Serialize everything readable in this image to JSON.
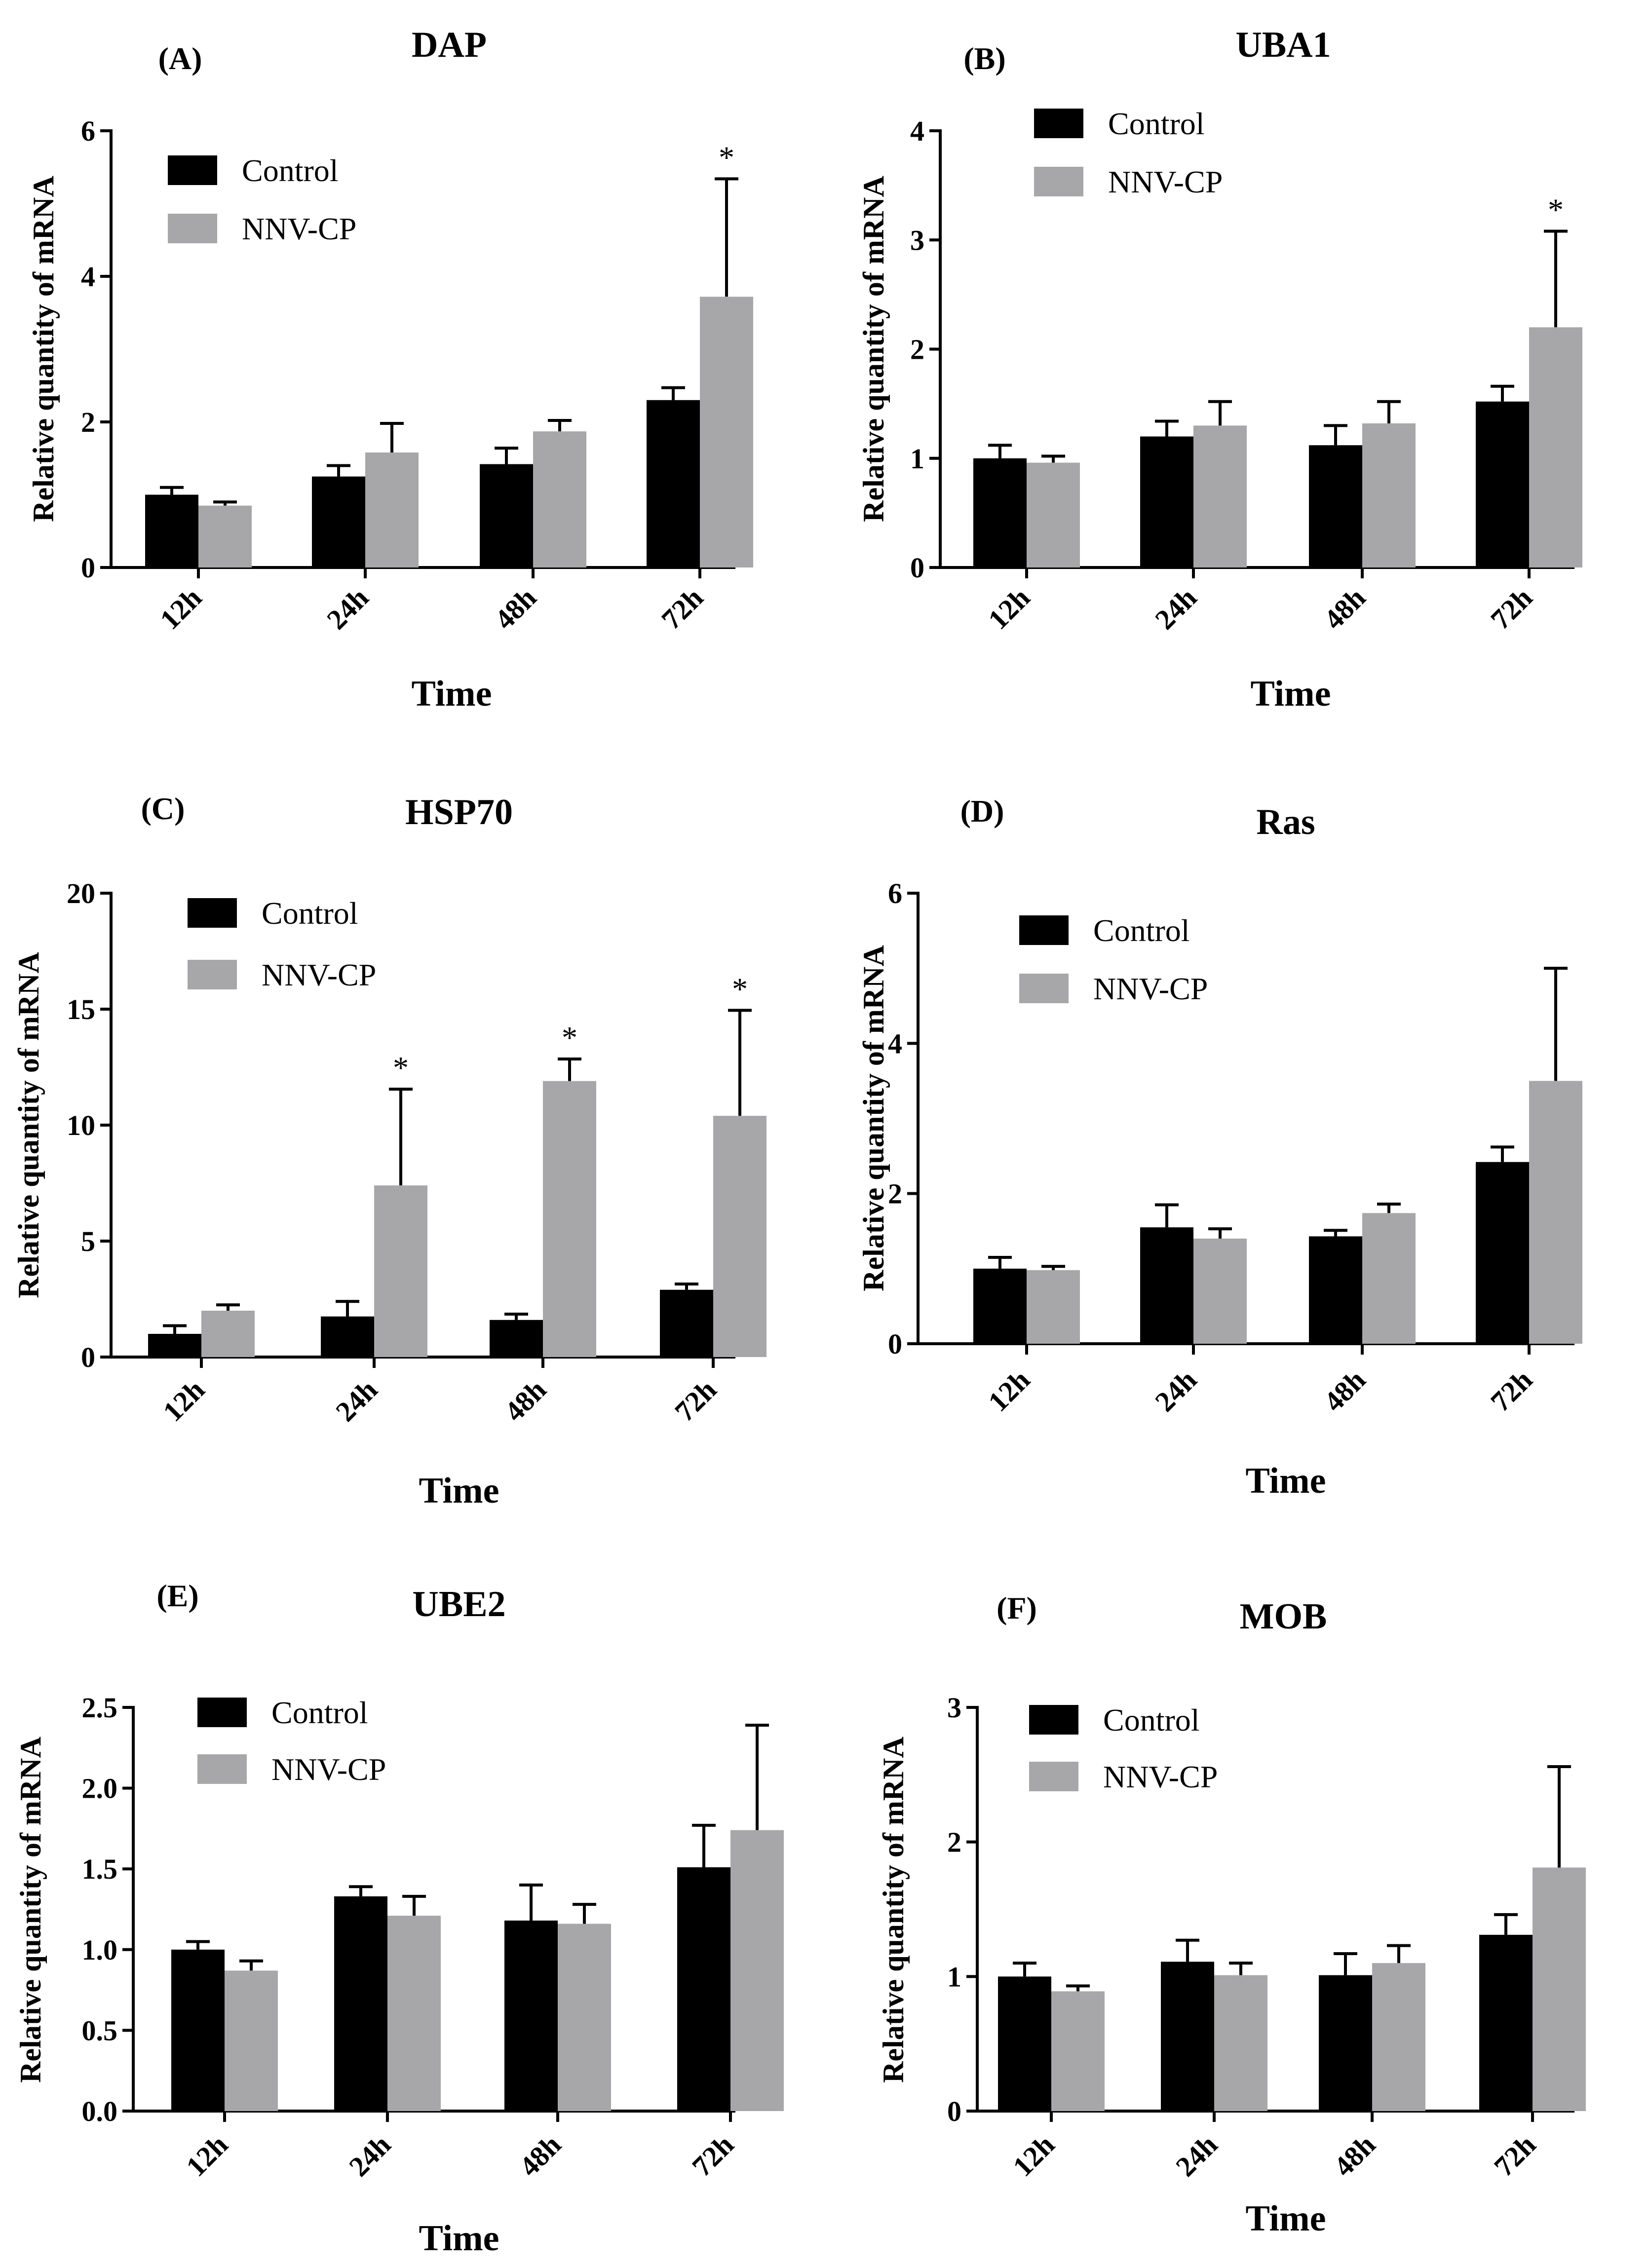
{
  "colors": {
    "control": "#000000",
    "nnv_cp": "#a7a7a9",
    "axis": "#000000"
  },
  "legend": {
    "control": "Control",
    "nnv_cp": "NNV-CP"
  },
  "chart_data": [
    {
      "type": "bar",
      "panel": "(A)",
      "title": "DAP",
      "xlabel": "Time",
      "ylabel": "Relative quantity of mRNA",
      "categories": [
        "12h",
        "24h",
        "48h",
        "72h"
      ],
      "ylim": [
        0,
        6
      ],
      "yticks": [
        "0",
        "2",
        "4",
        "6"
      ],
      "ytick_values": [
        0,
        2,
        4,
        6
      ],
      "series": [
        {
          "name": "Control",
          "values": [
            1.0,
            1.25,
            1.42,
            2.3
          ],
          "errors": [
            0.1,
            0.15,
            0.22,
            0.17
          ]
        },
        {
          "name": "NNV-CP",
          "values": [
            0.85,
            1.58,
            1.87,
            3.72
          ],
          "errors": [
            0.05,
            0.4,
            0.15,
            1.62
          ]
        }
      ],
      "significance": [
        null,
        null,
        null,
        "*"
      ]
    },
    {
      "type": "bar",
      "panel": "(B)",
      "title": "UBA1",
      "xlabel": "Time",
      "ylabel": "Relative quantity of mRNA",
      "categories": [
        "12h",
        "24h",
        "48h",
        "72h"
      ],
      "ylim": [
        0,
        4
      ],
      "yticks": [
        "0",
        "1",
        "2",
        "3",
        "4"
      ],
      "ytick_values": [
        0,
        1,
        2,
        3,
        4
      ],
      "series": [
        {
          "name": "Control",
          "values": [
            1.0,
            1.2,
            1.12,
            1.52
          ],
          "errors": [
            0.12,
            0.14,
            0.18,
            0.14
          ]
        },
        {
          "name": "NNV-CP",
          "values": [
            0.96,
            1.3,
            1.32,
            2.2
          ],
          "errors": [
            0.06,
            0.22,
            0.2,
            0.88
          ]
        }
      ],
      "significance": [
        null,
        null,
        null,
        "*"
      ]
    },
    {
      "type": "bar",
      "panel": "(C)",
      "title": "HSP70",
      "xlabel": "Time",
      "ylabel": "Relative quantity of mRNA",
      "categories": [
        "12h",
        "24h",
        "48h",
        "72h"
      ],
      "ylim": [
        0,
        20
      ],
      "yticks": [
        "0",
        "5",
        "10",
        "15",
        "20"
      ],
      "ytick_values": [
        0,
        5,
        10,
        15,
        20
      ],
      "series": [
        {
          "name": "Control",
          "values": [
            1.0,
            1.75,
            1.6,
            2.9
          ],
          "errors": [
            0.35,
            0.65,
            0.25,
            0.25
          ]
        },
        {
          "name": "NNV-CP",
          "values": [
            2.0,
            7.4,
            11.9,
            10.4
          ],
          "errors": [
            0.25,
            4.15,
            0.95,
            4.55
          ]
        }
      ],
      "significance": [
        null,
        "*",
        "*",
        "*"
      ]
    },
    {
      "type": "bar",
      "panel": "(D)",
      "title": "Ras",
      "xlabel": "Time",
      "ylabel": "Relative quantity of mRNA",
      "categories": [
        "12h",
        "24h",
        "48h",
        "72h"
      ],
      "ylim": [
        0,
        6
      ],
      "yticks": [
        "0",
        "2",
        "4",
        "6"
      ],
      "ytick_values": [
        0,
        2,
        4,
        6
      ],
      "series": [
        {
          "name": "Control",
          "values": [
            1.0,
            1.55,
            1.43,
            2.42
          ],
          "errors": [
            0.15,
            0.3,
            0.08,
            0.2
          ]
        },
        {
          "name": "NNV-CP",
          "values": [
            0.98,
            1.4,
            1.74,
            3.5
          ],
          "errors": [
            0.05,
            0.13,
            0.12,
            1.5
          ]
        }
      ],
      "significance": [
        null,
        null,
        null,
        null
      ]
    },
    {
      "type": "bar",
      "panel": "(E)",
      "title": "UBE2",
      "xlabel": "Time",
      "ylabel": "Relative quantity of mRNA",
      "categories": [
        "12h",
        "24h",
        "48h",
        "72h"
      ],
      "ylim": [
        0,
        2.5
      ],
      "yticks": [
        "0.0",
        "0.5",
        "1.0",
        "1.5",
        "2.0",
        "2.5"
      ],
      "ytick_values": [
        0,
        0.5,
        1.0,
        1.5,
        2.0,
        2.5
      ],
      "series": [
        {
          "name": "Control",
          "values": [
            1.0,
            1.33,
            1.18,
            1.51
          ],
          "errors": [
            0.05,
            0.06,
            0.22,
            0.26
          ]
        },
        {
          "name": "NNV-CP",
          "values": [
            0.87,
            1.21,
            1.16,
            1.74
          ],
          "errors": [
            0.06,
            0.12,
            0.12,
            0.65
          ]
        }
      ],
      "significance": [
        null,
        null,
        null,
        null
      ]
    },
    {
      "type": "bar",
      "panel": "(F)",
      "title": "MOB",
      "xlabel": "Time",
      "ylabel": "Relative quantity of mRNA",
      "categories": [
        "12h",
        "24h",
        "48h",
        "72h"
      ],
      "ylim": [
        0,
        3
      ],
      "yticks": [
        "0",
        "1",
        "2",
        "3"
      ],
      "ytick_values": [
        0,
        1,
        2,
        3
      ],
      "series": [
        {
          "name": "Control",
          "values": [
            1.0,
            1.11,
            1.01,
            1.31
          ],
          "errors": [
            0.1,
            0.16,
            0.16,
            0.15
          ]
        },
        {
          "name": "NNV-CP",
          "values": [
            0.89,
            1.01,
            1.1,
            1.81
          ],
          "errors": [
            0.04,
            0.09,
            0.13,
            0.75
          ]
        }
      ],
      "significance": [
        null,
        null,
        null,
        null
      ]
    }
  ]
}
